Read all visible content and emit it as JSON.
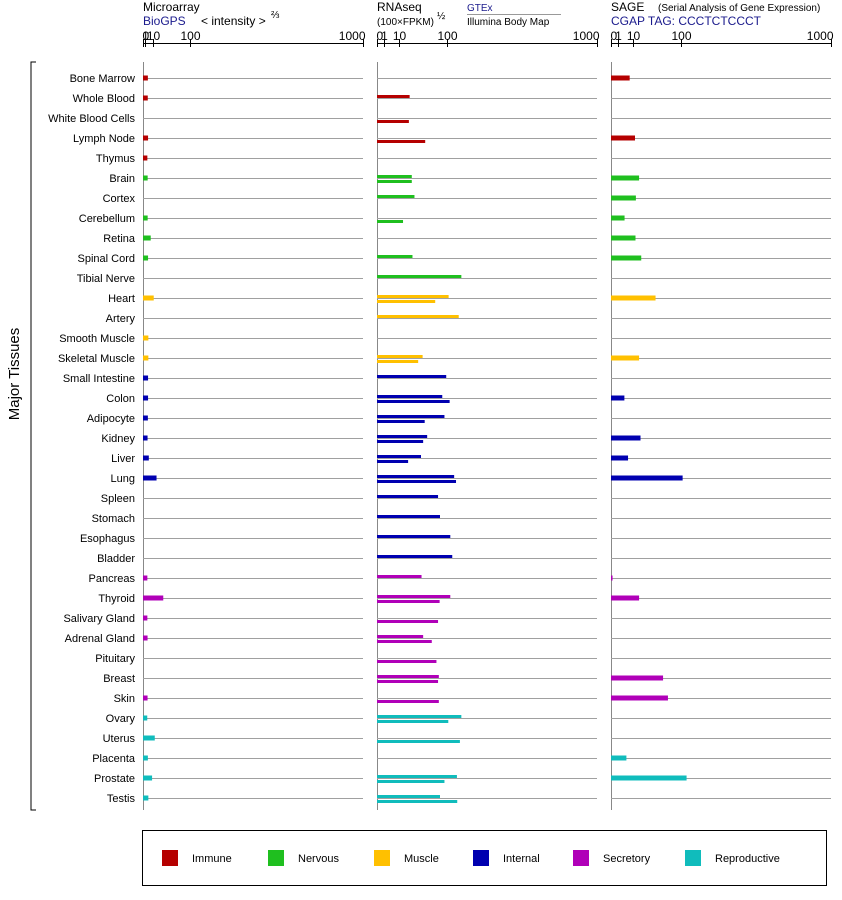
{
  "chart_data": {
    "type": "bar",
    "ylabel": "Major Tissues",
    "colors": {
      "Immune": "#b50000",
      "Nervous": "#1fbf1f",
      "Muscle": "#ffc000",
      "Internal": "#0000b0",
      "Secretory": "#b000b8",
      "Reproductive": "#10bcbc"
    },
    "legend": [
      "Immune",
      "Nervous",
      "Muscle",
      "Internal",
      "Secretory",
      "Reproductive"
    ],
    "ticks": [
      "0",
      "1",
      "10",
      "100",
      "1000"
    ],
    "tissues": [
      {
        "name": "Bone Marrow",
        "group": "Immune"
      },
      {
        "name": "Whole Blood",
        "group": "Immune"
      },
      {
        "name": "White Blood Cells",
        "group": "Immune"
      },
      {
        "name": "Lymph Node",
        "group": "Immune"
      },
      {
        "name": "Thymus",
        "group": "Immune"
      },
      {
        "name": "Brain",
        "group": "Nervous"
      },
      {
        "name": "Cortex",
        "group": "Nervous"
      },
      {
        "name": "Cerebellum",
        "group": "Nervous"
      },
      {
        "name": "Retina",
        "group": "Nervous"
      },
      {
        "name": "Spinal Cord",
        "group": "Nervous"
      },
      {
        "name": "Tibial Nerve",
        "group": "Nervous"
      },
      {
        "name": "Heart",
        "group": "Muscle"
      },
      {
        "name": "Artery",
        "group": "Muscle"
      },
      {
        "name": "Smooth Muscle",
        "group": "Muscle"
      },
      {
        "name": "Skeletal Muscle",
        "group": "Muscle"
      },
      {
        "name": "Small Intestine",
        "group": "Internal"
      },
      {
        "name": "Colon",
        "group": "Internal"
      },
      {
        "name": "Adipocyte",
        "group": "Internal"
      },
      {
        "name": "Kidney",
        "group": "Internal"
      },
      {
        "name": "Liver",
        "group": "Internal"
      },
      {
        "name": "Lung",
        "group": "Internal"
      },
      {
        "name": "Spleen",
        "group": "Internal"
      },
      {
        "name": "Stomach",
        "group": "Internal"
      },
      {
        "name": "Esophagus",
        "group": "Internal"
      },
      {
        "name": "Bladder",
        "group": "Internal"
      },
      {
        "name": "Pancreas",
        "group": "Secretory"
      },
      {
        "name": "Thyroid",
        "group": "Secretory"
      },
      {
        "name": "Salivary Gland",
        "group": "Secretory"
      },
      {
        "name": "Adrenal Gland",
        "group": "Secretory"
      },
      {
        "name": "Pituitary",
        "group": "Secretory"
      },
      {
        "name": "Breast",
        "group": "Secretory"
      },
      {
        "name": "Skin",
        "group": "Secretory"
      },
      {
        "name": "Ovary",
        "group": "Reproductive"
      },
      {
        "name": "Uterus",
        "group": "Reproductive"
      },
      {
        "name": "Placenta",
        "group": "Reproductive"
      },
      {
        "name": "Prostate",
        "group": "Reproductive"
      },
      {
        "name": "Testis",
        "group": "Reproductive"
      }
    ],
    "panels": [
      {
        "key": "microarray",
        "title": "Microarray",
        "source": "BioGPS",
        "scale_label": "< intensity >",
        "scale_exp": "⅔",
        "scale_exponent": 0.667,
        "values": [
          3.3,
          3.2,
          null,
          3.5,
          2.8,
          3.1,
          null,
          3.1,
          6.6,
          3.5,
          null,
          10.8,
          null,
          3.8,
          3.8,
          3.5,
          3.5,
          3.3,
          3.0,
          4.3,
          15.3,
          null,
          null,
          null,
          null,
          2.8,
          28,
          2.8,
          3.0,
          null,
          null,
          3.0,
          2.7,
          12.4,
          3.3,
          8.4,
          3.8
        ]
      },
      {
        "key": "rnaseq",
        "title": "RNAseq",
        "unit": "(100×FPKM)",
        "unit_exp": "½",
        "scale_exponent": 0.5,
        "sources": [
          "GTEx",
          "Illumina Body Map"
        ],
        "values": [
          [
            null,
            null
          ],
          [
            22,
            null
          ],
          [
            null,
            21
          ],
          [
            null,
            48
          ],
          [
            null,
            null
          ],
          [
            25,
            25
          ],
          [
            29,
            null
          ],
          [
            null,
            14
          ],
          [
            null,
            null
          ],
          [
            26,
            null
          ],
          [
            147,
            null
          ],
          [
            106,
            70
          ],
          [
            138,
            null
          ],
          [
            null,
            null
          ],
          [
            43,
            35
          ],
          [
            99,
            null
          ],
          [
            88,
            109
          ],
          [
            94,
            47
          ],
          [
            52,
            44
          ],
          [
            40,
            20
          ],
          [
            123,
            129
          ],
          [
            77,
            null
          ],
          [
            82,
            null
          ],
          [
            111,
            null
          ],
          [
            117,
            null
          ],
          [
            41,
            null
          ],
          [
            111,
            81
          ],
          [
            null,
            77
          ],
          [
            44,
            62
          ],
          [
            null,
            73
          ],
          [
            79,
            77
          ],
          [
            null,
            79
          ],
          [
            147,
            105
          ],
          [
            null,
            142
          ],
          [
            null,
            null
          ],
          [
            132,
            94
          ],
          [
            82,
            133
          ]
        ]
      },
      {
        "key": "sage",
        "title": "SAGE",
        "subtitle": "(Serial Analysis of Gene Expression)",
        "source": "CGAP TAG: CCCTCTCCCT",
        "scale_exponent": 0.5,
        "values": [
          7.2,
          null,
          null,
          11.9,
          null,
          16.3,
          12.8,
          3.8,
          12.4,
          18.9,
          null,
          41,
          null,
          null,
          16.3,
          null,
          3.7,
          null,
          18.0,
          6.0,
          106,
          null,
          null,
          null,
          null,
          0.05,
          16.3,
          null,
          null,
          null,
          56,
          67,
          null,
          null,
          4.9,
          118,
          null
        ]
      }
    ]
  }
}
